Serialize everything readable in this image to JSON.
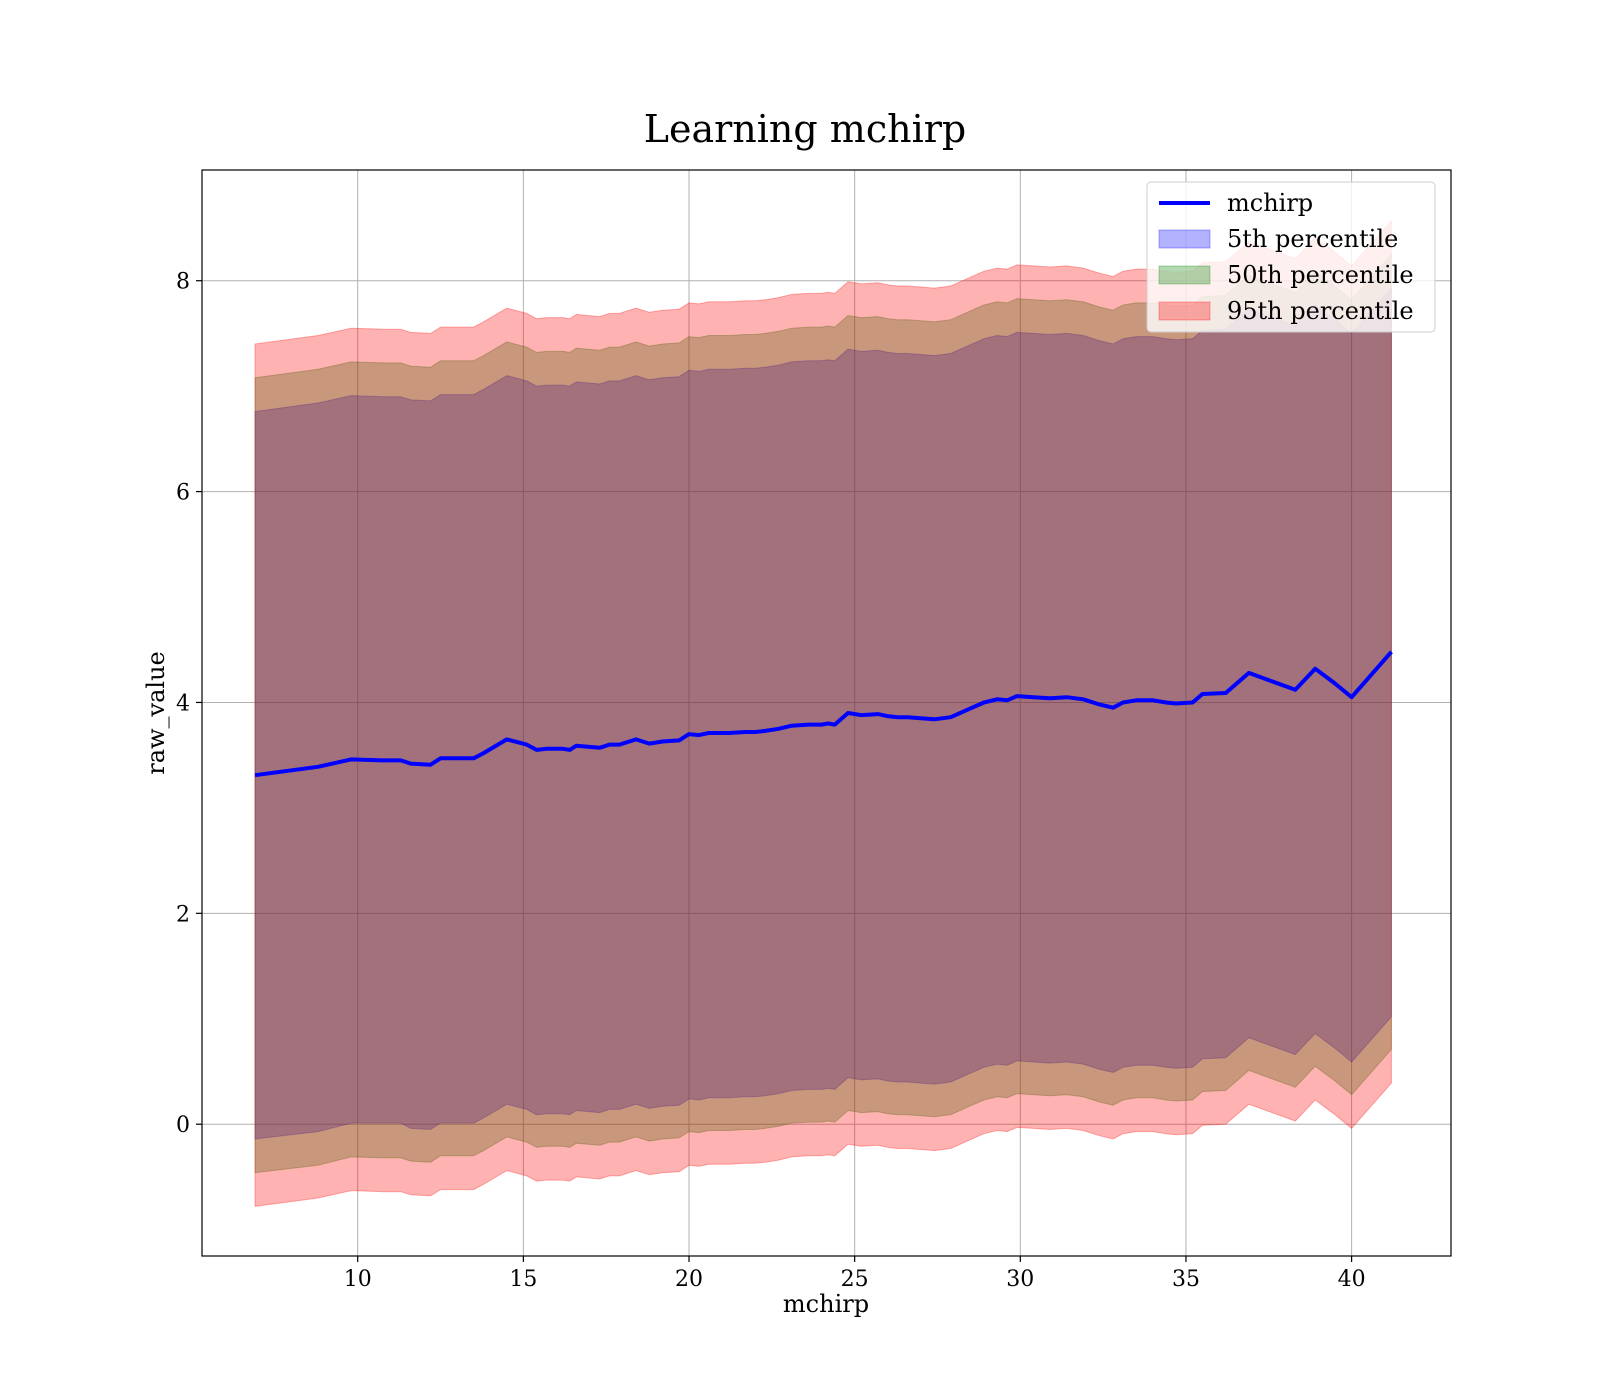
{
  "chart_data": {
    "type": "area",
    "title": "Learning mchirp",
    "xlabel": "mchirp",
    "ylabel": "raw_value",
    "xlim": [
      5.3,
      43.0
    ],
    "ylim": [
      -1.25,
      9.05
    ],
    "xticks": [
      10,
      15,
      20,
      25,
      30,
      35,
      40
    ],
    "yticks": [
      0,
      2,
      4,
      6,
      8
    ],
    "grid": true,
    "legend_position": "top-right",
    "x": [
      6.9,
      8.8,
      9.8,
      10.8,
      11.3,
      11.6,
      12.2,
      12.5,
      13.5,
      13.8,
      14.5,
      15.1,
      15.4,
      15.7,
      16.2,
      16.4,
      16.6,
      17.3,
      17.6,
      17.9,
      18.4,
      18.8,
      19.2,
      19.7,
      20.0,
      20.3,
      20.6,
      21.2,
      21.7,
      22.0,
      22.3,
      22.7,
      23.1,
      23.6,
      24.0,
      24.2,
      24.4,
      24.8,
      25.2,
      25.7,
      26.0,
      26.3,
      26.6,
      27.0,
      27.4,
      27.9,
      28.4,
      28.9,
      29.3,
      29.6,
      29.9,
      30.4,
      30.9,
      31.4,
      31.9,
      32.4,
      32.8,
      33.1,
      33.5,
      34.0,
      34.4,
      34.7,
      35.2,
      35.5,
      36.2,
      36.9,
      37.6,
      38.3,
      38.9,
      39.5,
      40.0,
      41.2
    ],
    "series": [
      {
        "name": "mchirp",
        "kind": "line",
        "color": "#0000ff",
        "values": [
          3.31,
          3.39,
          3.46,
          3.45,
          3.45,
          3.42,
          3.41,
          3.47,
          3.47,
          3.52,
          3.65,
          3.6,
          3.55,
          3.56,
          3.56,
          3.55,
          3.59,
          3.57,
          3.6,
          3.6,
          3.65,
          3.61,
          3.63,
          3.64,
          3.7,
          3.69,
          3.71,
          3.71,
          3.72,
          3.72,
          3.73,
          3.75,
          3.78,
          3.79,
          3.79,
          3.8,
          3.79,
          3.9,
          3.88,
          3.89,
          3.87,
          3.86,
          3.86,
          3.85,
          3.84,
          3.86,
          3.93,
          4.0,
          4.03,
          4.02,
          4.06,
          4.05,
          4.04,
          4.05,
          4.03,
          3.98,
          3.95,
          4.0,
          4.02,
          4.02,
          4.0,
          3.99,
          4.0,
          4.08,
          4.09,
          4.28,
          4.2,
          4.12,
          4.32,
          4.18,
          4.05,
          4.48
        ]
      },
      {
        "name": "5th percentile",
        "kind": "band",
        "color": "#0000ff",
        "opacity": 0.3,
        "lower": [
          -0.14,
          -0.07,
          0.01,
          0.01,
          0.01,
          -0.04,
          -0.05,
          0.01,
          0.01,
          0.06,
          0.19,
          0.14,
          0.09,
          0.1,
          0.1,
          0.09,
          0.13,
          0.11,
          0.14,
          0.14,
          0.19,
          0.15,
          0.17,
          0.18,
          0.24,
          0.23,
          0.25,
          0.25,
          0.26,
          0.26,
          0.27,
          0.29,
          0.32,
          0.33,
          0.33,
          0.34,
          0.33,
          0.44,
          0.42,
          0.43,
          0.41,
          0.4,
          0.4,
          0.39,
          0.38,
          0.4,
          0.47,
          0.54,
          0.57,
          0.56,
          0.6,
          0.59,
          0.58,
          0.59,
          0.57,
          0.52,
          0.49,
          0.54,
          0.56,
          0.56,
          0.54,
          0.53,
          0.54,
          0.62,
          0.63,
          0.82,
          0.74,
          0.66,
          0.86,
          0.72,
          0.59,
          1.02
        ],
        "upper": [
          6.76,
          6.84,
          6.91,
          6.9,
          6.9,
          6.87,
          6.86,
          6.92,
          6.92,
          6.97,
          7.1,
          7.05,
          7.0,
          7.01,
          7.01,
          7.0,
          7.04,
          7.02,
          7.05,
          7.05,
          7.1,
          7.06,
          7.08,
          7.09,
          7.15,
          7.14,
          7.16,
          7.16,
          7.17,
          7.17,
          7.18,
          7.2,
          7.23,
          7.24,
          7.24,
          7.25,
          7.24,
          7.35,
          7.33,
          7.34,
          7.32,
          7.31,
          7.31,
          7.3,
          7.29,
          7.31,
          7.38,
          7.45,
          7.48,
          7.47,
          7.51,
          7.5,
          7.49,
          7.5,
          7.48,
          7.43,
          7.4,
          7.45,
          7.47,
          7.47,
          7.45,
          7.44,
          7.45,
          7.53,
          7.54,
          7.73,
          7.65,
          7.57,
          7.77,
          7.63,
          7.5,
          7.93
        ]
      },
      {
        "name": "50th percentile",
        "kind": "band",
        "color": "#008000",
        "opacity": 0.3,
        "lower": [
          -0.46,
          -0.39,
          -0.31,
          -0.32,
          -0.32,
          -0.35,
          -0.36,
          -0.3,
          -0.3,
          -0.25,
          -0.12,
          -0.17,
          -0.22,
          -0.21,
          -0.21,
          -0.22,
          -0.18,
          -0.2,
          -0.17,
          -0.17,
          -0.12,
          -0.16,
          -0.14,
          -0.13,
          -0.07,
          -0.08,
          -0.06,
          -0.06,
          -0.05,
          -0.05,
          -0.04,
          -0.02,
          0.01,
          0.02,
          0.02,
          0.03,
          0.02,
          0.13,
          0.11,
          0.12,
          0.1,
          0.09,
          0.09,
          0.08,
          0.07,
          0.09,
          0.16,
          0.23,
          0.26,
          0.25,
          0.29,
          0.28,
          0.27,
          0.28,
          0.26,
          0.21,
          0.18,
          0.23,
          0.25,
          0.25,
          0.23,
          0.22,
          0.23,
          0.31,
          0.32,
          0.51,
          0.43,
          0.35,
          0.55,
          0.41,
          0.28,
          0.71
        ],
        "upper": [
          7.08,
          7.16,
          7.23,
          7.22,
          7.22,
          7.19,
          7.18,
          7.24,
          7.24,
          7.29,
          7.42,
          7.37,
          7.32,
          7.33,
          7.33,
          7.32,
          7.36,
          7.34,
          7.37,
          7.37,
          7.42,
          7.38,
          7.4,
          7.41,
          7.47,
          7.46,
          7.48,
          7.48,
          7.49,
          7.49,
          7.5,
          7.52,
          7.55,
          7.56,
          7.56,
          7.57,
          7.56,
          7.67,
          7.65,
          7.66,
          7.64,
          7.63,
          7.63,
          7.62,
          7.61,
          7.63,
          7.7,
          7.77,
          7.8,
          7.79,
          7.83,
          7.82,
          7.81,
          7.82,
          7.8,
          7.75,
          7.72,
          7.77,
          7.79,
          7.79,
          7.77,
          7.76,
          7.77,
          7.85,
          7.86,
          8.05,
          7.97,
          7.89,
          8.09,
          7.95,
          7.82,
          8.25
        ]
      },
      {
        "name": "95th percentile",
        "kind": "band",
        "color": "#ff0000",
        "opacity": 0.3,
        "lower": [
          -0.78,
          -0.7,
          -0.63,
          -0.64,
          -0.64,
          -0.67,
          -0.68,
          -0.62,
          -0.62,
          -0.57,
          -0.44,
          -0.49,
          -0.54,
          -0.53,
          -0.53,
          -0.54,
          -0.5,
          -0.52,
          -0.49,
          -0.49,
          -0.44,
          -0.48,
          -0.46,
          -0.45,
          -0.39,
          -0.4,
          -0.38,
          -0.38,
          -0.37,
          -0.37,
          -0.36,
          -0.34,
          -0.31,
          -0.3,
          -0.3,
          -0.29,
          -0.3,
          -0.19,
          -0.21,
          -0.2,
          -0.22,
          -0.23,
          -0.23,
          -0.24,
          -0.25,
          -0.23,
          -0.16,
          -0.09,
          -0.06,
          -0.07,
          -0.03,
          -0.04,
          -0.05,
          -0.04,
          -0.06,
          -0.11,
          -0.14,
          -0.09,
          -0.07,
          -0.07,
          -0.09,
          -0.1,
          -0.09,
          -0.01,
          0.0,
          0.19,
          0.11,
          0.03,
          0.23,
          0.09,
          -0.04,
          0.39
        ],
        "upper": [
          7.4,
          7.48,
          7.55,
          7.54,
          7.54,
          7.51,
          7.5,
          7.56,
          7.56,
          7.61,
          7.74,
          7.69,
          7.64,
          7.65,
          7.65,
          7.64,
          7.68,
          7.66,
          7.69,
          7.69,
          7.74,
          7.7,
          7.72,
          7.73,
          7.79,
          7.78,
          7.8,
          7.8,
          7.81,
          7.81,
          7.82,
          7.84,
          7.87,
          7.88,
          7.88,
          7.89,
          7.88,
          7.99,
          7.97,
          7.98,
          7.96,
          7.95,
          7.95,
          7.94,
          7.93,
          7.95,
          8.02,
          8.09,
          8.12,
          8.11,
          8.15,
          8.14,
          8.13,
          8.14,
          8.12,
          8.07,
          8.04,
          8.09,
          8.11,
          8.11,
          8.09,
          8.08,
          8.09,
          8.17,
          8.18,
          8.37,
          8.29,
          8.21,
          8.41,
          8.27,
          8.14,
          8.57
        ]
      }
    ]
  }
}
